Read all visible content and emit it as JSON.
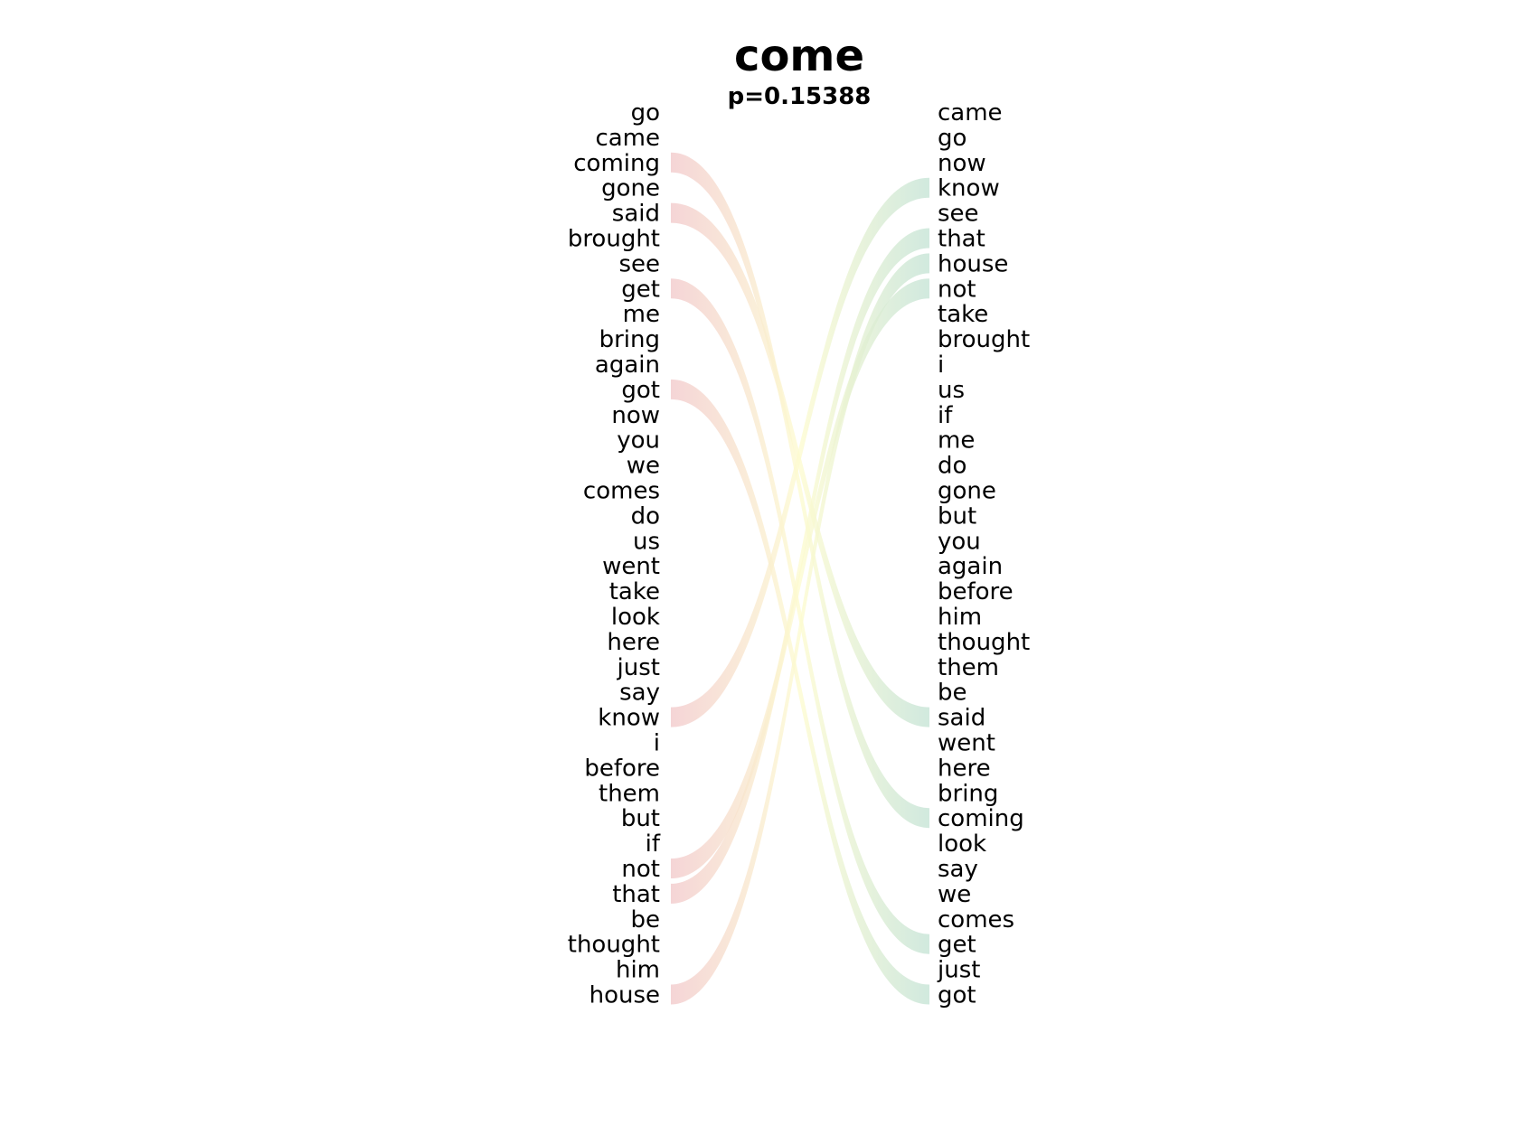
{
  "title": "come",
  "subtitle": "p=0.15388",
  "left_words": [
    "go",
    "came",
    "coming",
    "gone",
    "said",
    "brought",
    "see",
    "get",
    "me",
    "bring",
    "again",
    "got",
    "now",
    "you",
    "we",
    "comes",
    "do",
    "us",
    "went",
    "take",
    "look",
    "here",
    "just",
    "say",
    "know",
    "i",
    "before",
    "them",
    "but",
    "if",
    "not",
    "that",
    "be",
    "thought",
    "him",
    "house"
  ],
  "right_words": [
    "came",
    "go",
    "now",
    "know",
    "see",
    "that",
    "house",
    "not",
    "take",
    "brought",
    "i",
    "us",
    "if",
    "me",
    "do",
    "gone",
    "but",
    "you",
    "again",
    "before",
    "him",
    "thought",
    "them",
    "be",
    "said",
    "went",
    "here",
    "bring",
    "coming",
    "look",
    "say",
    "we",
    "comes",
    "get",
    "just",
    "got"
  ],
  "connections": [
    {
      "word": "coming",
      "from_rank": 3,
      "to_rank": 29
    },
    {
      "word": "said",
      "from_rank": 5,
      "to_rank": 25
    },
    {
      "word": "get",
      "from_rank": 8,
      "to_rank": 34
    },
    {
      "word": "got",
      "from_rank": 12,
      "to_rank": 36
    },
    {
      "word": "know",
      "from_rank": 25,
      "to_rank": 4
    },
    {
      "word": "not",
      "from_rank": 31,
      "to_rank": 8
    },
    {
      "word": "that",
      "from_rank": 32,
      "to_rank": 6
    },
    {
      "word": "house",
      "from_rank": 36,
      "to_rank": 7
    }
  ],
  "colors": {
    "left_end": "#f2c9cb",
    "middle": "#fdfbd0",
    "right_end": "#c4e3d5"
  }
}
